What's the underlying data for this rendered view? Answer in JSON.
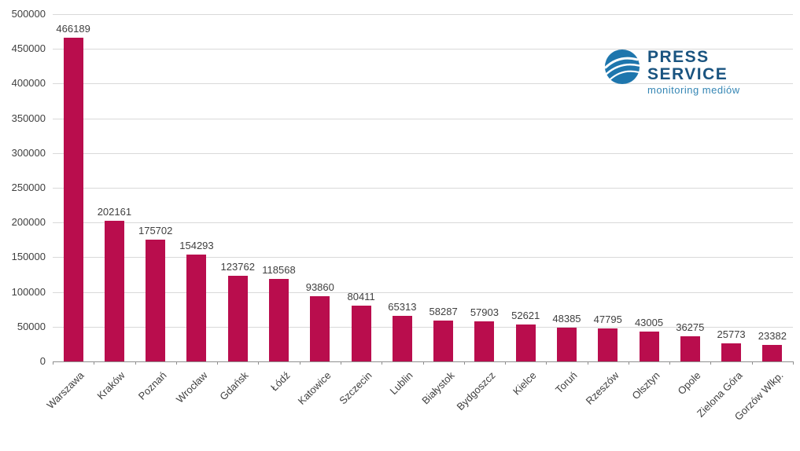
{
  "chart_data": {
    "type": "bar",
    "categories": [
      "Warszawa",
      "Kraków",
      "Poznań",
      "Wrocław",
      "Gdańsk",
      "Łódź",
      "Katowice",
      "Szczecin",
      "Lublin",
      "Białystok",
      "Bydgoszcz",
      "Kielce",
      "Toruń",
      "Rzeszów",
      "Olsztyn",
      "Opole",
      "Zielona Góra",
      "Gorzów Wlkp."
    ],
    "values": [
      466189,
      202161,
      175702,
      154293,
      123762,
      118568,
      93860,
      80411,
      65313,
      58287,
      57903,
      52621,
      48385,
      47795,
      43005,
      36275,
      25773,
      23382
    ],
    "title": "",
    "xlabel": "",
    "ylabel": "",
    "ylim": [
      0,
      500000
    ],
    "ytick_step": 50000,
    "grid": true,
    "legend": "none",
    "bar_color": "#b90d4d",
    "gridline_color": "#d9d9d9",
    "axis_color": "#8f8f8f",
    "label_color": "#404040"
  },
  "logo": {
    "line1": "PRESS",
    "line2": "SERVICE",
    "tagline": "monitoring mediów",
    "text_color": "#1a5480",
    "tagline_color": "#3586b4",
    "globe_color": "#1e76ad"
  }
}
